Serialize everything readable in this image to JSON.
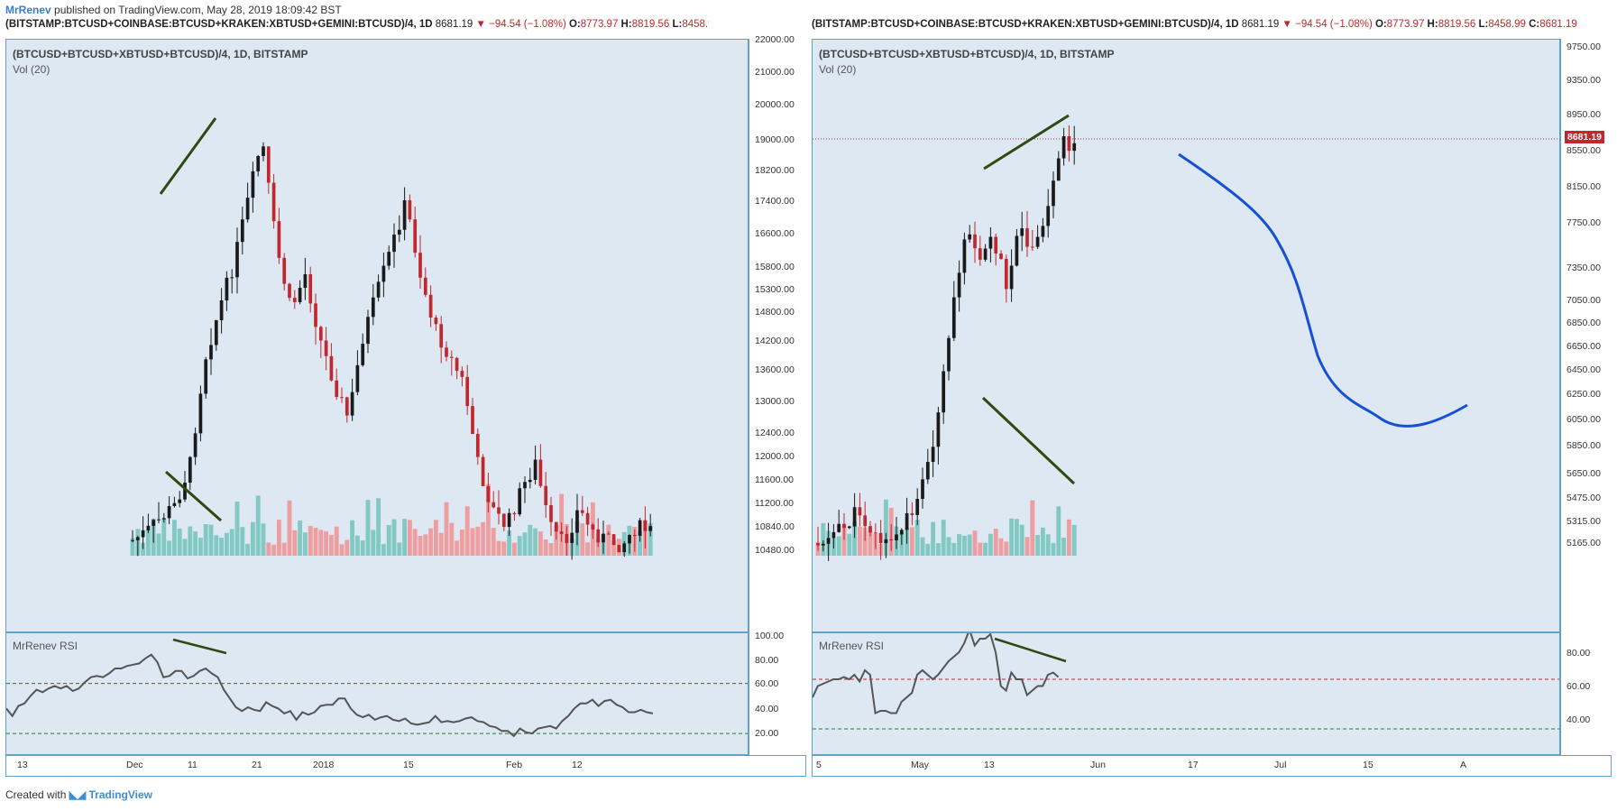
{
  "header": {
    "author": "MrRenev",
    "published": " published on TradingView.com, May 28, 2019 18:09:42 BST"
  },
  "symbol_bar": {
    "symbol": "(BITSTAMP:BTCUSD+COINBASE:BTCUSD+KRAKEN:XBTUSD+GEMINI:BTCUSD)/4, 1D",
    "last": "8681.19",
    "change": "▼ −94.54 (−1.08%)",
    "o_label": "O:",
    "o": "8773.97",
    "h_label": "H:",
    "h": "8819.56",
    "l_label": "L:",
    "l": "8458.99",
    "c_label": "C:",
    "c": "8681.19"
  },
  "panel_title": "(BTCUSD+BTCUSD+XBTUSD+BTCUSD)/4, 1D, BITSTAMP",
  "vol_label": "Vol (20)",
  "rsi_label": "MrRenev RSI",
  "footer": {
    "created": "Created with",
    "brand": "TradingView"
  },
  "colors": {
    "bull": "#1a1a1a",
    "bear": "#c0282d",
    "vol_bull": "#7cc7c1",
    "vol_bear": "#ee9a9c",
    "trend": "#2d4a12",
    "curve": "#1650d6",
    "rsi": "#555555"
  },
  "chart_data": [
    {
      "type": "candlestick",
      "name": "left",
      "price_ticks": [
        "22000.00",
        "21000.00",
        "20000.00",
        "19000.00",
        "18200.00",
        "17400.00",
        "16600.00",
        "15800.00",
        "15300.00",
        "14800.00",
        "14200.00",
        "13600.00",
        "13000.00",
        "12400.00",
        "12000.00",
        "11600.00",
        "11200.00",
        "10840.00",
        "10480.00"
      ],
      "x_ticks": [
        "13",
        "Dec",
        "11",
        "21",
        "2018",
        "15",
        "Feb",
        "12"
      ],
      "rsi_ticks": [
        "100.00",
        "80.00",
        "60.00",
        "40.00",
        "20.00"
      ],
      "rsi_levels": {
        "upper": 70,
        "lower": 30
      },
      "rsi_values": [
        50,
        44,
        52,
        54,
        60,
        65,
        63,
        66,
        68,
        66,
        68,
        64,
        66,
        71,
        75,
        76,
        75,
        78,
        82,
        82,
        84,
        85,
        86,
        90,
        93,
        87,
        75,
        76,
        80,
        80,
        74,
        76,
        80,
        82,
        78,
        75,
        65,
        58,
        51,
        48,
        51,
        49,
        48,
        55,
        52,
        50,
        46,
        48,
        41,
        47,
        45,
        47,
        52,
        53,
        53,
        58,
        58,
        50,
        45,
        43,
        45,
        41,
        43,
        44,
        41,
        40,
        42,
        38,
        37,
        38,
        39,
        44,
        39,
        40,
        39,
        40,
        42,
        43,
        40,
        39,
        36,
        35,
        32,
        32,
        28,
        34,
        31,
        30,
        34,
        35,
        36,
        34,
        40,
        44,
        50,
        54,
        54,
        57,
        52,
        56,
        57,
        53,
        51,
        47,
        47,
        49,
        47,
        46
      ]
    },
    {
      "type": "candlestick",
      "name": "right",
      "price_ticks": [
        "9750.00",
        "9350.00",
        "8950.00",
        "8550.00",
        "8150.00",
        "7750.00",
        "7350.00",
        "7050.00",
        "6850.00",
        "6650.00",
        "6450.00",
        "6250.00",
        "6050.00",
        "5850.00",
        "5650.00",
        "5475.00",
        "5315.00",
        "5165.00"
      ],
      "last_price": "8681.19",
      "x_ticks": [
        "5",
        "May",
        "13",
        "Jun",
        "17",
        "Jul",
        "15",
        "A"
      ],
      "rsi_ticks": [
        "80.00",
        "60.00",
        "40.00"
      ],
      "rsi_levels": {
        "upper": 70,
        "lower": 30
      },
      "rsi_values": [
        62,
        67,
        68,
        69,
        70,
        70,
        71,
        70,
        72,
        69,
        74,
        72,
        55,
        56,
        56,
        55,
        55,
        60,
        62,
        64,
        72,
        74,
        72,
        70,
        72,
        75,
        78,
        80,
        82,
        86,
        92,
        85,
        88,
        88,
        90,
        82,
        67,
        65,
        73,
        70,
        70,
        63,
        65,
        67,
        67,
        72,
        73,
        71
      ]
    }
  ]
}
